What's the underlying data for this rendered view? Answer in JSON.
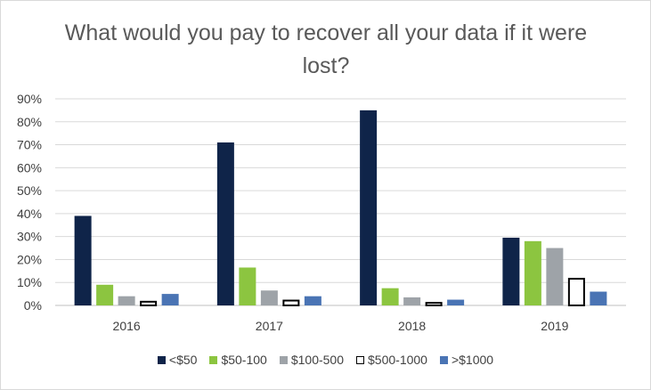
{
  "chart_data": {
    "type": "bar",
    "title": "What would you pay to recover all your data if it were lost?",
    "xlabel": "",
    "ylabel": "",
    "categories": [
      "2016",
      "2017",
      "2018",
      "2019"
    ],
    "ylim": [
      0,
      90
    ],
    "yticks": [
      "0%",
      "10%",
      "20%",
      "30%",
      "40%",
      "50%",
      "60%",
      "70%",
      "80%",
      "90%"
    ],
    "grid": true,
    "legend_position": "bottom",
    "series": [
      {
        "name": "<$50",
        "color": "#0f2449",
        "values": [
          39,
          71,
          85,
          29.5
        ]
      },
      {
        "name": "$50-100",
        "color": "#8cc540",
        "values": [
          9,
          16.5,
          7.5,
          28
        ]
      },
      {
        "name": "$100-500",
        "color": "#9ea3a8",
        "values": [
          4,
          6.5,
          3.5,
          25
        ]
      },
      {
        "name": "$500-1000",
        "color": "#ffffff",
        "stroke": "#000000",
        "values": [
          2,
          2.5,
          1.5,
          12
        ]
      },
      {
        "name": ">$1000",
        "color": "#4a74b4",
        "values": [
          5,
          4,
          2.5,
          6
        ]
      }
    ]
  }
}
